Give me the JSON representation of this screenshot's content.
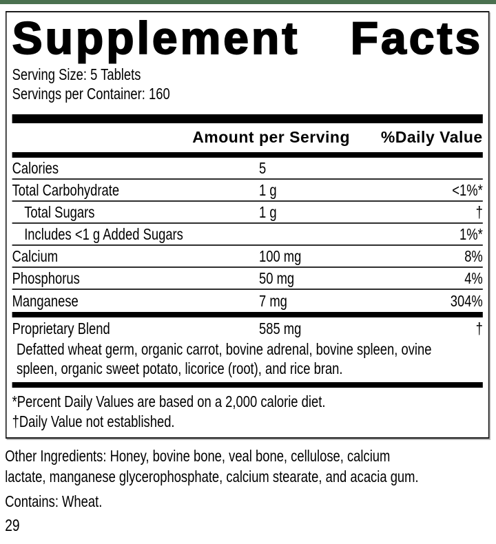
{
  "colors": {
    "top_bar_green": "#4b7150",
    "text": "#000000",
    "rule_black": "#000000"
  },
  "label": {
    "title_left": "Supplement",
    "title_right": "Facts",
    "serving_size": "Serving Size: 5 Tablets",
    "servings_per_container": "Servings per Container: 160",
    "columns": {
      "amount": "Amount per Serving",
      "daily_value": "%Daily Value"
    },
    "rows": [
      {
        "name": "Calories",
        "amount": "5",
        "daily_value": ""
      },
      {
        "name": "Total Carbohydrate",
        "amount": "1 g",
        "daily_value": "<1%*"
      },
      {
        "name": "Total Sugars",
        "amount": "1 g",
        "daily_value": "†"
      },
      {
        "name": "Includes <1 g Added Sugars",
        "amount": "",
        "daily_value": "1%*"
      },
      {
        "name": "Calcium",
        "amount": "100 mg",
        "daily_value": "8%"
      },
      {
        "name": "Phosphorus",
        "amount": "50 mg",
        "daily_value": "4%"
      },
      {
        "name": "Manganese",
        "amount": "7 mg",
        "daily_value": "304%"
      }
    ],
    "proprietary_blend": {
      "name": "Proprietary Blend",
      "amount": "585 mg",
      "daily_value": "†",
      "description": "Defatted wheat germ, organic carrot, bovine adrenal, bovine spleen, ovine spleen, organic sweet potato, licorice (root), and rice bran."
    },
    "footnotes": {
      "percent_daily_value": "*Percent Daily Values are based on a 2,000 calorie diet.",
      "daily_value_not_established": "†Daily Value not established."
    }
  },
  "below_label": {
    "other_ingredients": "Other Ingredients: Honey, bovine bone, veal bone, cellulose, calcium lactate, manganese glycerophosphate, calcium stearate, and acacia gum.",
    "contains": "Contains: Wheat.",
    "page_number": "29"
  }
}
